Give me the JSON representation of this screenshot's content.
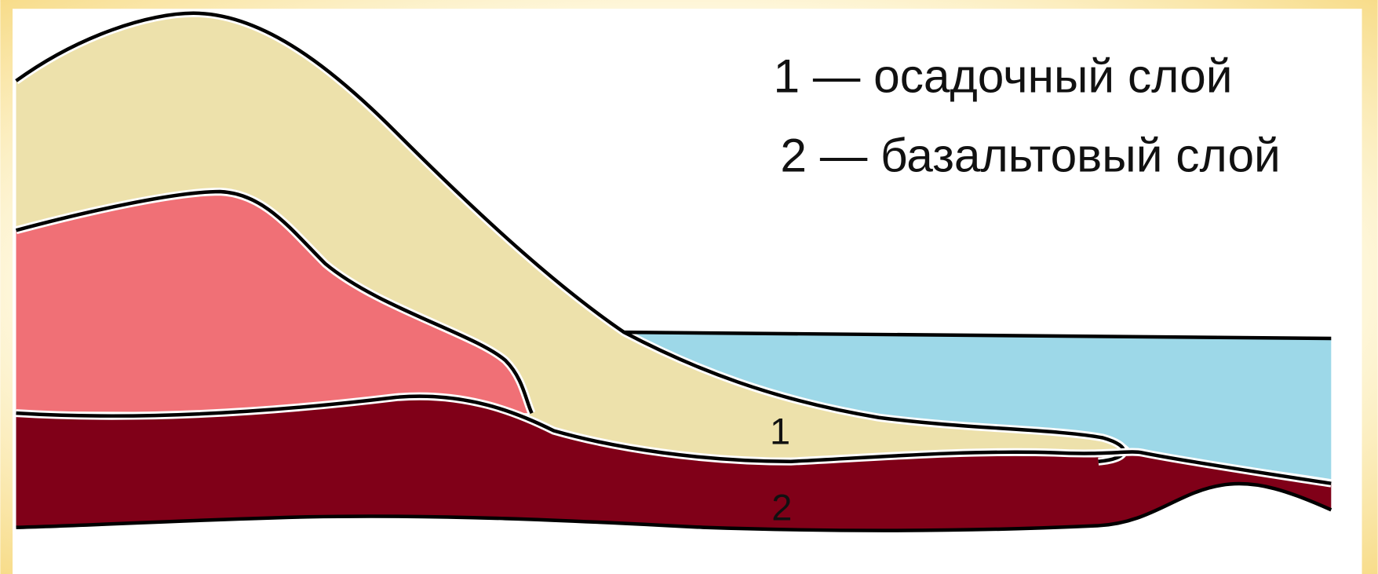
{
  "legend": {
    "items": [
      "1 — осадочный слой",
      "2 — базальтовый слой"
    ]
  },
  "labels": {
    "layer_1": "1",
    "layer_2": "2"
  }
}
